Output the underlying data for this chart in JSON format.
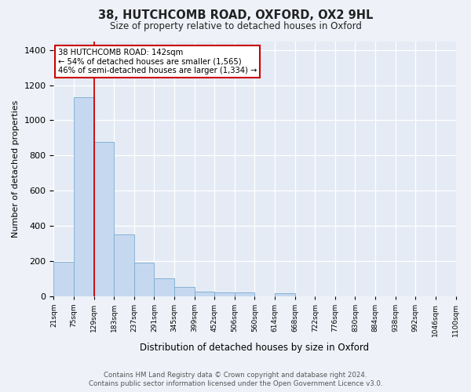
{
  "title": "38, HUTCHCOMB ROAD, OXFORD, OX2 9HL",
  "subtitle": "Size of property relative to detached houses in Oxford",
  "xlabel": "Distribution of detached houses by size in Oxford",
  "ylabel": "Number of detached properties",
  "bin_labels": [
    "21sqm",
    "75sqm",
    "129sqm",
    "183sqm",
    "237sqm",
    "291sqm",
    "345sqm",
    "399sqm",
    "452sqm",
    "506sqm",
    "560sqm",
    "614sqm",
    "668sqm",
    "722sqm",
    "776sqm",
    "830sqm",
    "884sqm",
    "938sqm",
    "992sqm",
    "1046sqm",
    "1100sqm"
  ],
  "bar_heights": [
    195,
    1130,
    875,
    350,
    190,
    100,
    50,
    25,
    18,
    18,
    0,
    15,
    0,
    0,
    0,
    0,
    0,
    0,
    0,
    0
  ],
  "bar_color": "#c5d8ef",
  "bar_edge_color": "#7aaad0",
  "red_line_x": 2,
  "annotation_line1": "38 HUTCHCOMB ROAD: 142sqm",
  "annotation_line2": "← 54% of detached houses are smaller (1,565)",
  "annotation_line3": "46% of semi-detached houses are larger (1,334) →",
  "annotation_box_facecolor": "#ffffff",
  "annotation_box_edgecolor": "#cc0000",
  "ylim": [
    0,
    1450
  ],
  "yticks": [
    0,
    200,
    400,
    600,
    800,
    1000,
    1200,
    1400
  ],
  "footer_line1": "Contains HM Land Registry data © Crown copyright and database right 2024.",
  "footer_line2": "Contains public sector information licensed under the Open Government Licence v3.0.",
  "fig_facecolor": "#eef2f8",
  "plot_facecolor": "#e4ebf5"
}
